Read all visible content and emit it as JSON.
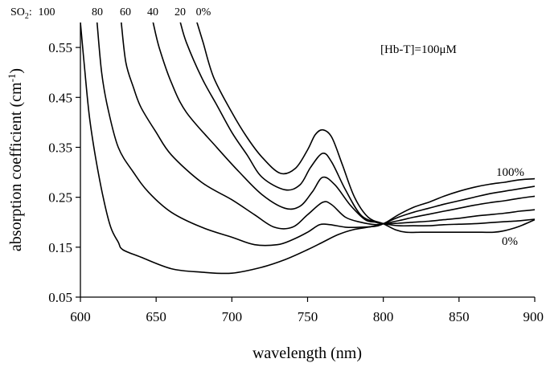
{
  "chart_data": {
    "type": "line",
    "title": "",
    "xlabel": "wavelength (nm)",
    "ylabel": "absorption coefficient (cm",
    "ylabel_sup": "-1",
    "ylabel_close": ")",
    "xlim": [
      600,
      900
    ],
    "ylim": [
      0.05,
      0.6
    ],
    "x_ticks": [
      600,
      650,
      700,
      750,
      800,
      850,
      900
    ],
    "x_tick_labels": [
      "600",
      "650",
      "700",
      "750",
      "800",
      "850",
      "900"
    ],
    "y_ticks": [
      0.05,
      0.15,
      0.25,
      0.35,
      0.45,
      0.55
    ],
    "y_tick_labels": [
      "0.05",
      "0.15",
      "0.25",
      "0.35",
      "0.45",
      "0.55"
    ],
    "grid": false,
    "line_color": "#000000",
    "annotation": "[Hb-T]=100μM",
    "so2_header": {
      "prefix": "SO",
      "sub": "2",
      "colon": ":",
      "values": [
        "100",
        "80",
        "60",
        "40",
        "20",
        "0%"
      ]
    },
    "right_labels": [
      "100%",
      "0%"
    ],
    "series": [
      {
        "x": [
          600,
          603,
          606,
          610,
          615,
          620,
          625,
          628,
          640,
          660,
          680,
          700,
          720,
          735,
          750,
          760,
          770,
          780,
          790,
          800,
          810,
          820,
          830,
          840,
          850,
          860,
          870,
          880,
          890,
          900
        ],
        "values": [
          0.6,
          0.5,
          0.41,
          0.33,
          0.25,
          0.19,
          0.16,
          0.145,
          0.13,
          0.107,
          0.1,
          0.098,
          0.11,
          0.125,
          0.145,
          0.16,
          0.175,
          0.185,
          0.19,
          0.197,
          0.215,
          0.23,
          0.24,
          0.252,
          0.262,
          0.27,
          0.276,
          0.28,
          0.285,
          0.287
        ]
      },
      {
        "x": [
          611,
          614,
          618,
          625,
          635,
          645,
          660,
          680,
          700,
          715,
          730,
          740,
          750,
          758,
          765,
          775,
          785,
          795,
          800,
          810,
          820,
          830,
          840,
          850,
          860,
          870,
          880,
          890,
          900
        ],
        "values": [
          0.6,
          0.5,
          0.43,
          0.35,
          0.3,
          0.26,
          0.22,
          0.19,
          0.17,
          0.155,
          0.155,
          0.165,
          0.18,
          0.195,
          0.195,
          0.19,
          0.19,
          0.192,
          0.197,
          0.21,
          0.22,
          0.228,
          0.236,
          0.243,
          0.25,
          0.257,
          0.262,
          0.267,
          0.272
        ]
      },
      {
        "x": [
          627,
          630,
          635,
          640,
          650,
          660,
          680,
          700,
          715,
          728,
          740,
          750,
          760,
          766,
          775,
          785,
          795,
          800,
          810,
          820,
          830,
          840,
          850,
          860,
          870,
          880,
          890,
          900
        ],
        "values": [
          0.6,
          0.52,
          0.47,
          0.43,
          0.38,
          0.335,
          0.28,
          0.245,
          0.215,
          0.19,
          0.19,
          0.215,
          0.24,
          0.235,
          0.21,
          0.2,
          0.195,
          0.197,
          0.203,
          0.21,
          0.216,
          0.222,
          0.228,
          0.234,
          0.239,
          0.243,
          0.248,
          0.252
        ]
      },
      {
        "x": [
          648,
          652,
          660,
          670,
          690,
          705,
          720,
          735,
          745,
          753,
          760,
          768,
          778,
          788,
          795,
          800,
          810,
          820,
          830,
          840,
          850,
          860,
          870,
          880,
          890,
          900
        ],
        "values": [
          0.6,
          0.55,
          0.48,
          0.42,
          0.35,
          0.3,
          0.255,
          0.228,
          0.232,
          0.26,
          0.29,
          0.275,
          0.235,
          0.205,
          0.2,
          0.197,
          0.198,
          0.2,
          0.202,
          0.205,
          0.208,
          0.212,
          0.215,
          0.218,
          0.222,
          0.225
        ]
      },
      {
        "x": [
          666,
          670,
          680,
          690,
          700,
          710,
          720,
          735,
          745,
          752,
          760,
          766,
          775,
          785,
          795,
          800,
          810,
          820,
          830,
          840,
          850,
          860,
          870,
          880,
          890,
          900
        ],
        "values": [
          0.6,
          0.56,
          0.49,
          0.435,
          0.38,
          0.335,
          0.29,
          0.265,
          0.275,
          0.31,
          0.338,
          0.32,
          0.265,
          0.215,
          0.2,
          0.197,
          0.193,
          0.193,
          0.193,
          0.195,
          0.196,
          0.197,
          0.199,
          0.201,
          0.203,
          0.206
        ]
      },
      {
        "x": [
          677,
          681,
          688,
          700,
          710,
          720,
          732,
          742,
          750,
          755,
          760,
          766,
          773,
          781,
          790,
          800,
          808,
          815,
          825,
          835,
          845,
          855,
          865,
          873,
          880,
          890,
          900
        ],
        "values": [
          0.6,
          0.56,
          0.49,
          0.42,
          0.37,
          0.33,
          0.298,
          0.308,
          0.345,
          0.375,
          0.385,
          0.37,
          0.315,
          0.25,
          0.21,
          0.197,
          0.185,
          0.18,
          0.18,
          0.18,
          0.18,
          0.18,
          0.18,
          0.18,
          0.183,
          0.192,
          0.205
        ]
      }
    ]
  }
}
